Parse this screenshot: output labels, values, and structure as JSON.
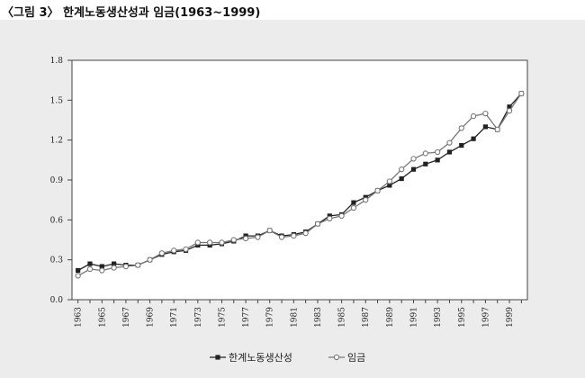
{
  "figure": {
    "title": "〈그림 3〉 한계노동생산성과 임금(1963~1999)"
  },
  "chart_data": {
    "type": "line",
    "title": "",
    "xlabel": "",
    "ylabel": "",
    "ylim": [
      0.0,
      1.8
    ],
    "y_ticks": [
      "0.0",
      "0.3",
      "0.6",
      "0.9",
      "1.2",
      "1.5",
      "1.8"
    ],
    "x_ticks": [
      "1963",
      "1965",
      "1967",
      "1969",
      "1971",
      "1973",
      "1975",
      "1977",
      "1979",
      "1981",
      "1983",
      "1985",
      "1987",
      "1989",
      "1991",
      "1993",
      "1995",
      "1997",
      "1999"
    ],
    "grid": false,
    "legend_position": "bottom",
    "x": [
      1963,
      1964,
      1965,
      1966,
      1967,
      1968,
      1969,
      1970,
      1971,
      1972,
      1973,
      1974,
      1975,
      1976,
      1977,
      1978,
      1979,
      1980,
      1981,
      1982,
      1983,
      1984,
      1985,
      1986,
      1987,
      1988,
      1989,
      1990,
      1991,
      1992,
      1993,
      1994,
      1995,
      1996,
      1997,
      1998,
      1999,
      2000
    ],
    "series": [
      {
        "name": "한계노동생산성",
        "marker": "filled-square",
        "color": "#222222",
        "values": [
          0.22,
          0.27,
          0.25,
          0.27,
          0.26,
          0.26,
          0.3,
          0.34,
          0.36,
          0.37,
          0.41,
          0.41,
          0.42,
          0.44,
          0.48,
          0.48,
          0.52,
          0.48,
          0.49,
          0.51,
          0.57,
          0.63,
          0.64,
          0.73,
          0.77,
          0.82,
          0.86,
          0.91,
          0.98,
          1.02,
          1.05,
          1.11,
          1.16,
          1.21,
          1.3,
          1.28,
          1.45,
          1.55
        ]
      },
      {
        "name": "임금",
        "marker": "open-circle",
        "color": "#777777",
        "values": [
          0.18,
          0.23,
          0.22,
          0.24,
          0.25,
          0.26,
          0.3,
          0.35,
          0.37,
          0.38,
          0.43,
          0.43,
          0.43,
          0.45,
          0.46,
          0.47,
          0.52,
          0.47,
          0.48,
          0.5,
          0.57,
          0.61,
          0.63,
          0.69,
          0.75,
          0.82,
          0.89,
          0.98,
          1.06,
          1.1,
          1.11,
          1.18,
          1.29,
          1.38,
          1.4,
          1.28,
          1.42,
          1.55
        ]
      }
    ]
  }
}
